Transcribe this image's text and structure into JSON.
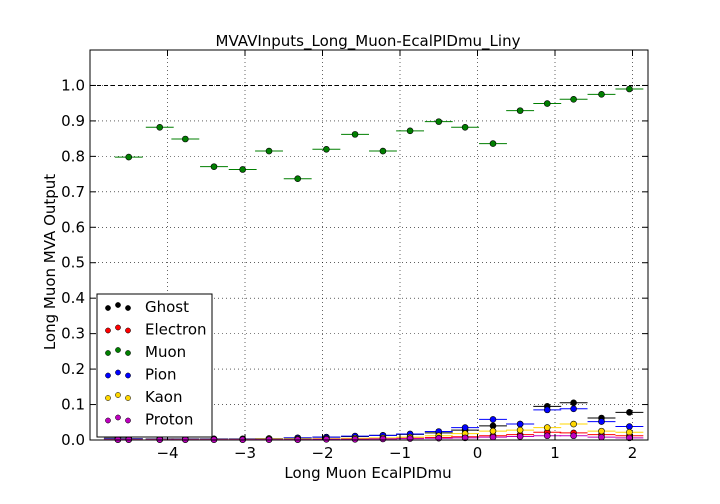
{
  "chart_data": {
    "type": "scatter",
    "title": "MVAVInputs_Long_Muon-EcalPIDmu_Liny",
    "xlabel": "Long Muon EcalPIDmu",
    "ylabel": "Long Muon MVA Output",
    "xlim": [
      -5.0,
      2.2
    ],
    "ylim": [
      0.0,
      1.1
    ],
    "xticks": [
      -4,
      -3,
      -2,
      -1,
      0,
      1,
      2
    ],
    "xtick_labels": [
      "−4",
      "−3",
      "−2",
      "−1",
      "0",
      "1",
      "2"
    ],
    "yticks": [
      0.0,
      0.1,
      0.2,
      0.3,
      0.4,
      0.5,
      0.6,
      0.7,
      0.8,
      0.9,
      1.0
    ],
    "ytick_labels": [
      "0.0",
      "0.1",
      "0.2",
      "0.3",
      "0.4",
      "0.5",
      "0.6",
      "0.7",
      "0.8",
      "0.9",
      "1.0"
    ],
    "grid": true,
    "reference_line_y": 1.0,
    "legend_position": "bottom-left",
    "bin_half_width": 0.18,
    "x": [
      -4.64,
      -4.5,
      -4.1,
      -3.77,
      -3.4,
      -3.03,
      -2.69,
      -2.32,
      -1.95,
      -1.58,
      -1.22,
      -0.87,
      -0.5,
      -0.16,
      0.2,
      0.55,
      0.9,
      1.24,
      1.6,
      1.96
    ],
    "series": [
      {
        "name": "Ghost",
        "color": "#000000",
        "values": [
          0.005,
          0.004,
          0.003,
          0.003,
          0.003,
          0.003,
          0.004,
          0.006,
          0.008,
          0.01,
          0.013,
          0.016,
          0.02,
          0.028,
          0.04,
          0.045,
          0.095,
          0.105,
          0.062,
          0.078
        ]
      },
      {
        "name": "Electron",
        "color": "#ff0000",
        "values": [
          0.002,
          0.002,
          0.002,
          0.002,
          0.002,
          0.002,
          0.002,
          0.002,
          0.003,
          0.003,
          0.004,
          0.005,
          0.007,
          0.009,
          0.012,
          0.015,
          0.022,
          0.02,
          0.015,
          0.012
        ]
      },
      {
        "name": "Muon",
        "color": "#007f00",
        "values": [
          null,
          0.798,
          0.882,
          0.849,
          0.771,
          0.763,
          0.815,
          0.737,
          0.82,
          0.862,
          0.815,
          0.872,
          0.898,
          0.882,
          0.836,
          0.929,
          0.949,
          0.961,
          0.975,
          0.99
        ]
      },
      {
        "name": "Pion",
        "color": "#0000ff",
        "values": [
          0.004,
          0.004,
          0.003,
          0.003,
          0.003,
          0.003,
          0.004,
          0.006,
          0.008,
          0.011,
          0.013,
          0.017,
          0.024,
          0.035,
          0.058,
          0.045,
          0.085,
          0.088,
          0.052,
          0.038
        ]
      },
      {
        "name": "Kaon",
        "color": "#ffd700",
        "values": [
          0.002,
          0.002,
          0.002,
          0.002,
          0.002,
          0.002,
          0.003,
          0.003,
          0.004,
          0.005,
          0.006,
          0.008,
          0.012,
          0.018,
          0.025,
          0.028,
          0.035,
          0.045,
          0.025,
          0.022
        ]
      },
      {
        "name": "Proton",
        "color": "#bf00bf",
        "values": [
          0.001,
          0.001,
          0.001,
          0.001,
          0.001,
          0.001,
          0.001,
          0.001,
          0.002,
          0.002,
          0.003,
          0.004,
          0.005,
          0.006,
          0.008,
          0.01,
          0.012,
          0.012,
          0.008,
          0.006
        ]
      }
    ]
  }
}
